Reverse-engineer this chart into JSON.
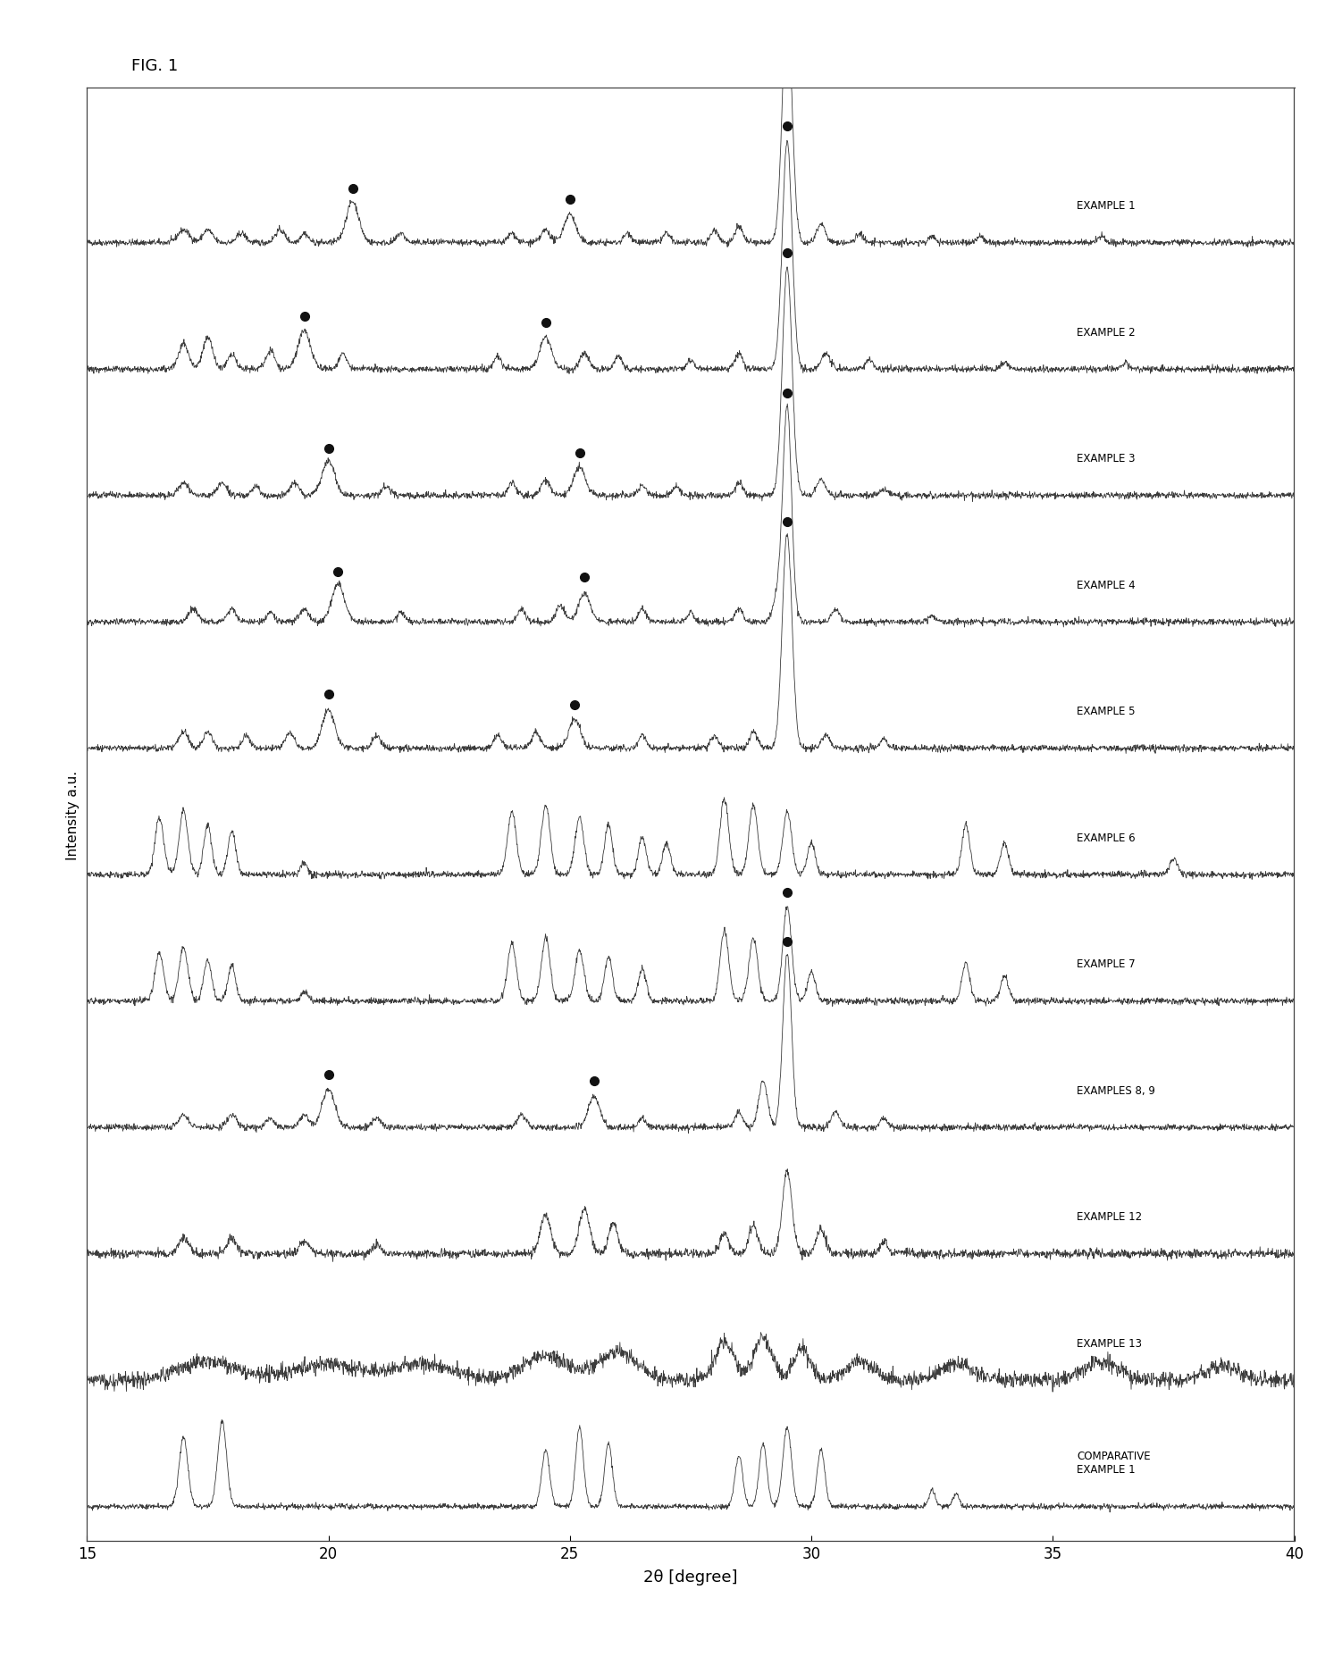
{
  "title": "FIG. 1",
  "xlabel": "2θ [degree]",
  "ylabel": "Intensity a.u.",
  "xlim": [
    15,
    40
  ],
  "x_ticks": [
    15,
    20,
    25,
    30,
    35,
    40
  ],
  "labels": [
    "EXAMPLE 1",
    "EXAMPLE 2",
    "EXAMPLE 3",
    "EXAMPLE 4",
    "EXAMPLE 5",
    "EXAMPLE 6",
    "EXAMPLE 7",
    "EXAMPLES 8, 9",
    "EXAMPLE 12",
    "EXAMPLE 13",
    "COMPARATIVE\nEXAMPLE 1"
  ],
  "bg_color": "#ffffff",
  "line_color": "#2a2a2a",
  "dot_color": "#111111",
  "figsize": [
    14.74,
    18.65
  ],
  "dpi": 100
}
